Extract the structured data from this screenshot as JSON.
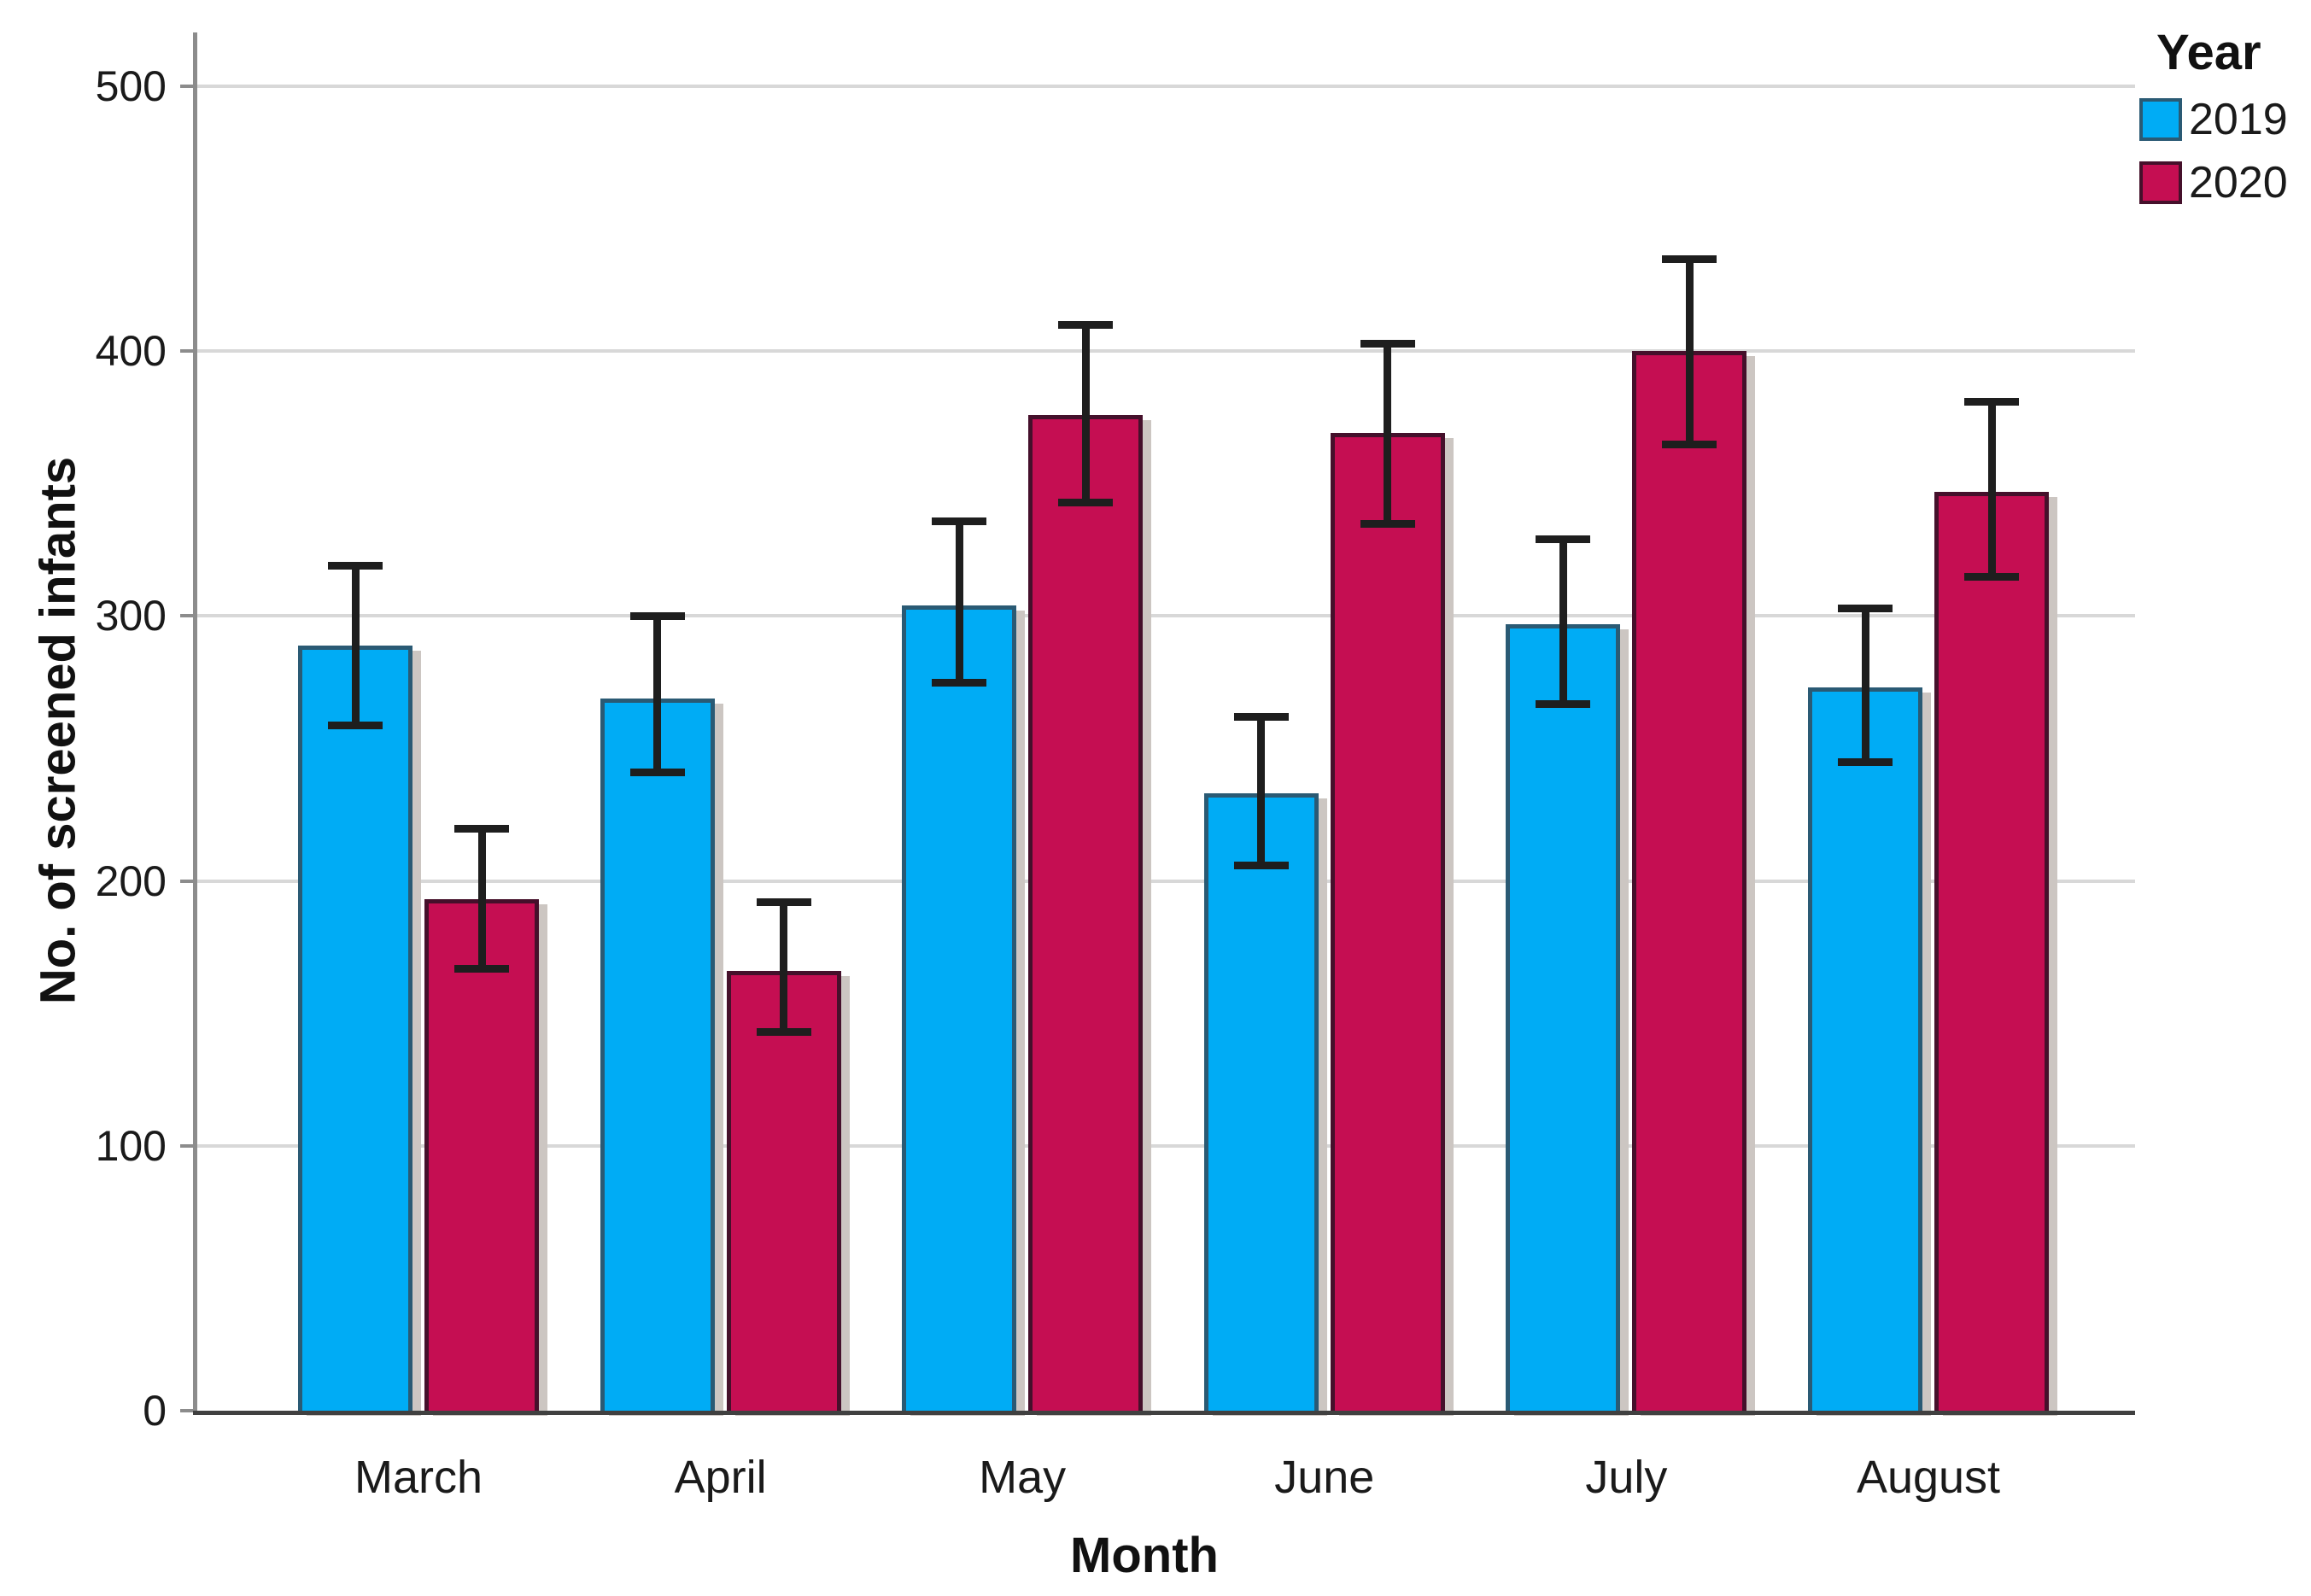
{
  "chart_data": {
    "type": "bar",
    "title": "",
    "xlabel": "Month",
    "ylabel": "No. of screened infants",
    "categories": [
      "March",
      "April",
      "May",
      "June",
      "July",
      "August"
    ],
    "y_ticks": [
      0,
      100,
      200,
      300,
      400,
      500
    ],
    "ylim": [
      0,
      520
    ],
    "grid": true,
    "error_bars": true,
    "legend": {
      "title": "Year",
      "position": "top-right"
    },
    "series": [
      {
        "name": "2019",
        "fill_color": "#00ACF5",
        "border_color": "#2A5A74",
        "values": [
          289,
          269,
          304,
          233,
          297,
          273
        ],
        "error_low": [
          259,
          241,
          275,
          206,
          267,
          245
        ],
        "error_high": [
          319,
          300,
          336,
          262,
          329,
          303
        ]
      },
      {
        "name": "2020",
        "fill_color": "#C50E52",
        "border_color": "#45102B",
        "values": [
          193,
          166,
          376,
          369,
          400,
          347
        ],
        "error_low": [
          167,
          143,
          343,
          335,
          365,
          315
        ],
        "error_high": [
          220,
          192,
          410,
          403,
          435,
          381
        ]
      }
    ]
  }
}
